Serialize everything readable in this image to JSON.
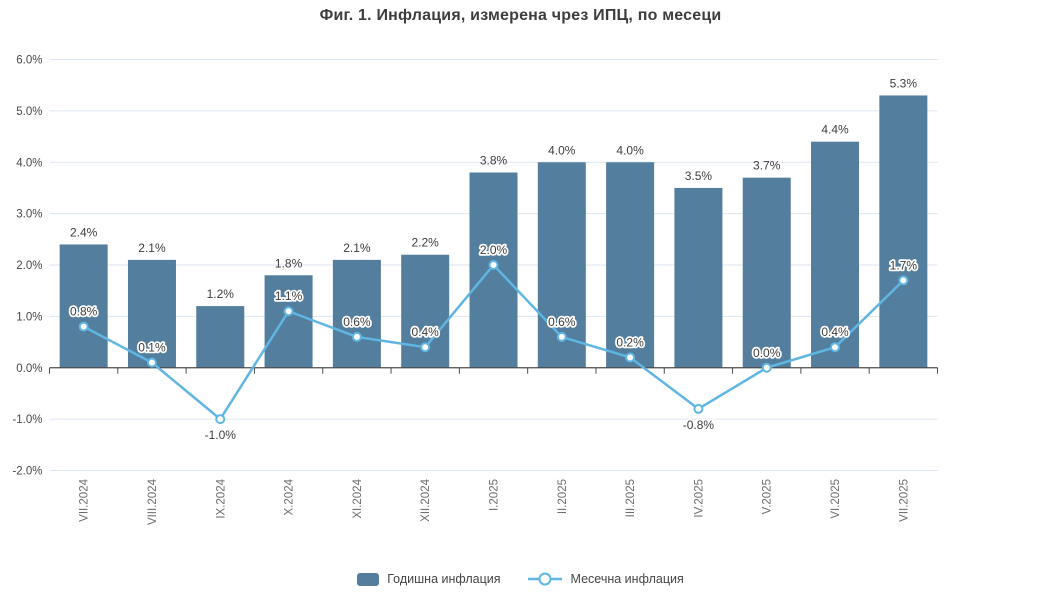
{
  "title": "Фиг. 1. Инфлация, измерена чрез ИПЦ, по месеци",
  "chart_data": {
    "type": "bar",
    "subtype": "bar-line-combo",
    "categories": [
      "VII.2024",
      "VIII.2024",
      "IX.2024",
      "X.2024",
      "XI.2024",
      "XII.2024",
      "I.2025",
      "II.2025",
      "III.2025",
      "IV.2025",
      "V.2025",
      "VI.2025",
      "VII.2025"
    ],
    "series": [
      {
        "name": "Годишна инфлация",
        "type": "bar",
        "color": "#537e9e",
        "values": [
          2.4,
          2.1,
          1.2,
          1.8,
          2.1,
          2.2,
          3.8,
          4.0,
          4.0,
          3.5,
          3.7,
          4.4,
          5.3
        ]
      },
      {
        "name": "Месечна инфлация",
        "type": "line",
        "color": "#5fb6e3",
        "values": [
          0.8,
          0.1,
          -1.0,
          1.1,
          0.6,
          0.4,
          2.0,
          0.6,
          0.2,
          -0.8,
          0.0,
          0.4,
          1.7
        ]
      }
    ],
    "title": "Фиг. 1. Инфлация, измерена чрез ИПЦ, по месеци",
    "xlabel": "",
    "ylabel": "",
    "ylim": [
      -2.0,
      6.0
    ],
    "ytick_step": 1.0,
    "ytick_labels": [
      "6.0%",
      "5.0%",
      "4.0%",
      "3.0%",
      "2.0%",
      "1.0%",
      "0.0%",
      "-1.0%",
      "-2.0%"
    ],
    "value_suffix": "%",
    "grid": true,
    "legend_position": "bottom"
  },
  "legend": {
    "annual_label": "Годишна инфлация",
    "monthly_label": "Месечна инфлация"
  },
  "colors": {
    "bar_fill": "#537e9e",
    "line_stroke": "#5fb6e3",
    "marker_fill": "#ffffff",
    "gridline": "#dde6f0",
    "axis_line": "#4d4d4d",
    "title_text": "#3d3d3d",
    "data_label_text": "#3d3d3d",
    "ytick_text": "#484848",
    "xtick_text": "#6e6e6e",
    "background": "#ffffff"
  }
}
